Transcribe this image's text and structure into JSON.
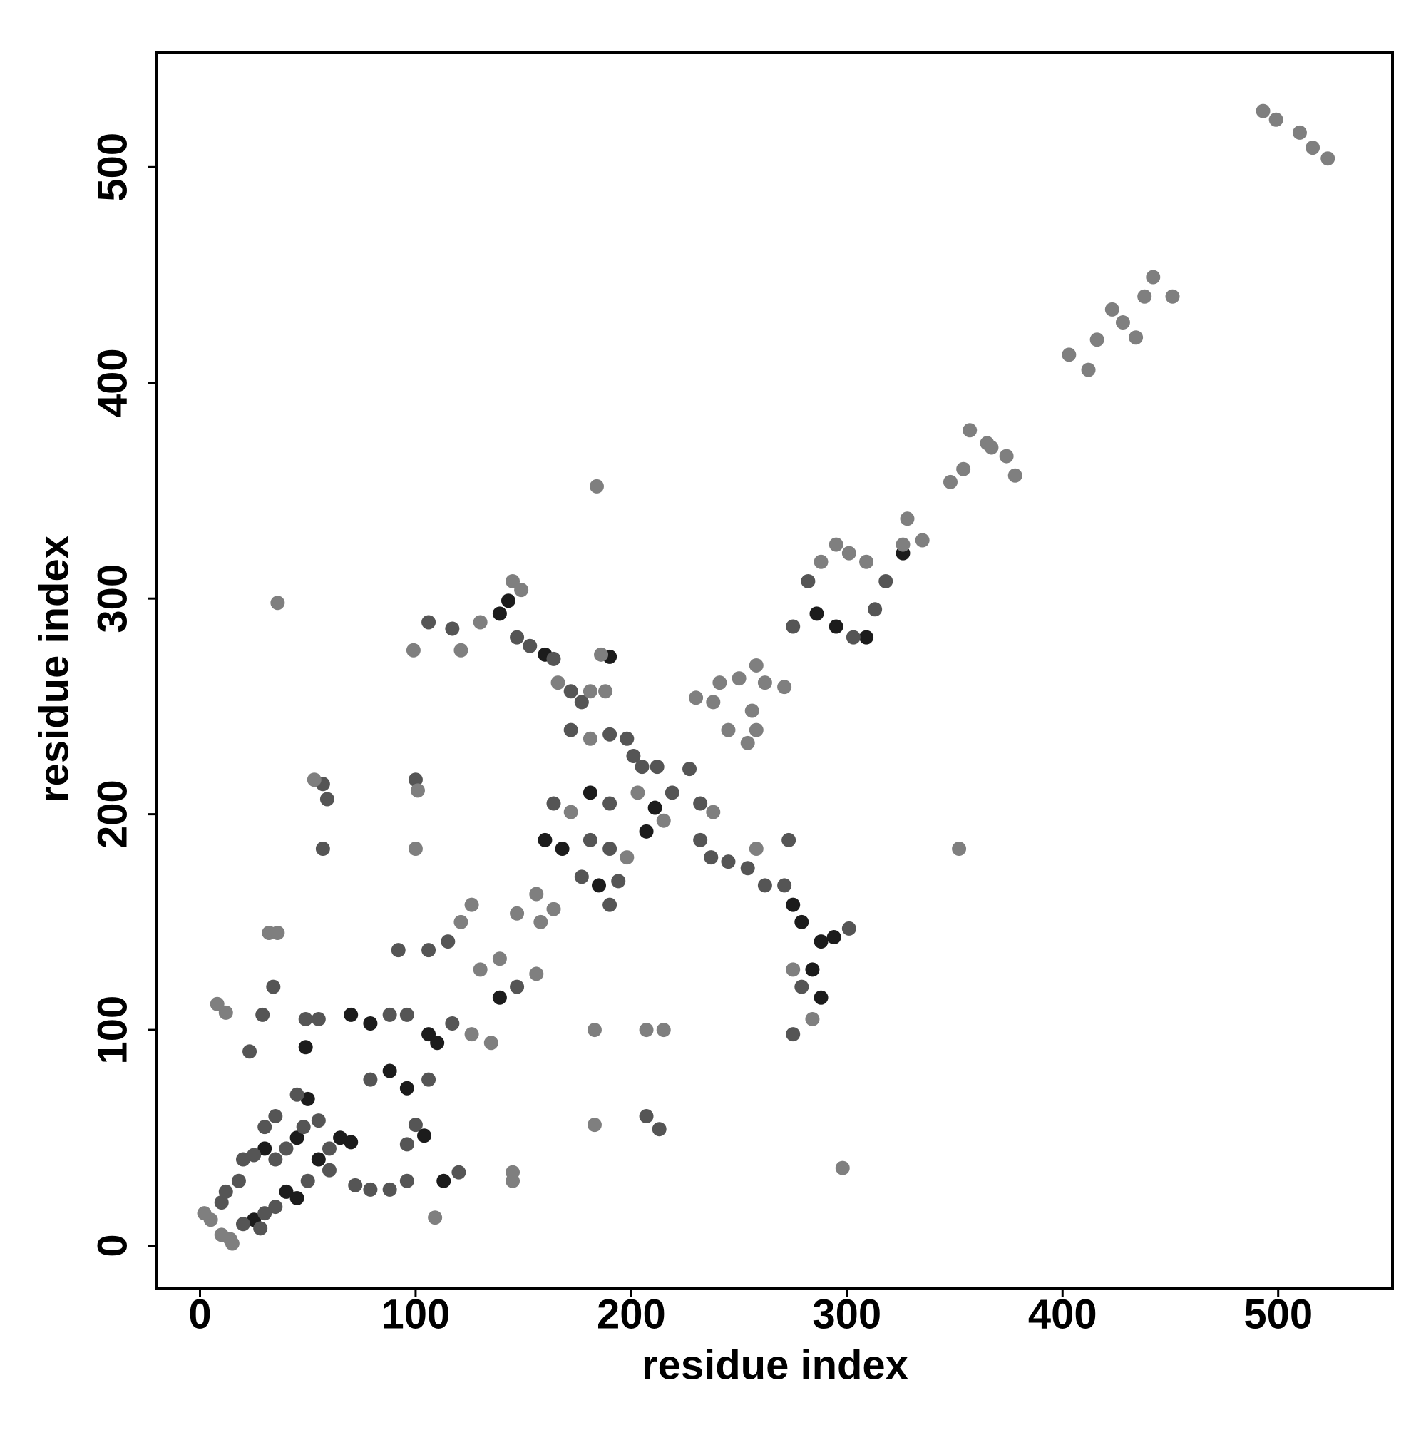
{
  "chart_data": {
    "type": "scatter",
    "x_label": "residue index",
    "y_label": "residue index",
    "xlim": [
      -20,
      553
    ],
    "ylim": [
      -20,
      553
    ],
    "xticks": [
      0,
      100,
      200,
      300,
      400,
      500
    ],
    "yticks": [
      0,
      100,
      200,
      300,
      400,
      500
    ],
    "grid": false,
    "series": [
      {
        "color": "#1c1c1c",
        "x": [
          25,
          30,
          45,
          50,
          55,
          65,
          70,
          40,
          45,
          70,
          79,
          88,
          96,
          106,
          110,
          104,
          113,
          139,
          139,
          143,
          160,
          181,
          211,
          168,
          185,
          160,
          275,
          279,
          288,
          294,
          284,
          288,
          286,
          295,
          309,
          326,
          207,
          190,
          49
        ],
        "y": [
          12,
          45,
          50,
          68,
          40,
          50,
          48,
          25,
          22,
          107,
          103,
          81,
          73,
          98,
          94,
          51,
          30,
          115,
          293,
          299,
          274,
          210,
          203,
          184,
          167,
          188,
          158,
          150,
          141,
          143,
          128,
          115,
          293,
          287,
          282,
          321,
          192,
          273,
          92
        ]
      },
      {
        "color": "#555555",
        "x": [
          10,
          12,
          20,
          28,
          18,
          20,
          25,
          35,
          40,
          48,
          50,
          60,
          60,
          30,
          35,
          30,
          35,
          45,
          55,
          23,
          29,
          34,
          49,
          55,
          57,
          59,
          100,
          106,
          117,
          147,
          153,
          164,
          172,
          177,
          172,
          190,
          198,
          201,
          205,
          212,
          227,
          164,
          190,
          219,
          232,
          181,
          190,
          177,
          194,
          190,
          232,
          237,
          245,
          254,
          262,
          271,
          301,
          279,
          275,
          273,
          88,
          96,
          117,
          79,
          106,
          92,
          106,
          115,
          147,
          96,
          79,
          88,
          72,
          100,
          96,
          120,
          207,
          213,
          275,
          282,
          303,
          313,
          318,
          57
        ],
        "y": [
          20,
          25,
          10,
          8,
          30,
          40,
          42,
          40,
          45,
          55,
          30,
          45,
          35,
          15,
          18,
          55,
          60,
          70,
          58,
          90,
          107,
          120,
          105,
          105,
          214,
          207,
          216,
          289,
          286,
          282,
          278,
          272,
          257,
          252,
          239,
          237,
          235,
          227,
          222,
          222,
          221,
          205,
          205,
          210,
          205,
          188,
          184,
          171,
          169,
          158,
          188,
          180,
          178,
          175,
          167,
          167,
          147,
          120,
          98,
          188,
          107,
          107,
          103,
          77,
          77,
          137,
          137,
          141,
          120,
          30,
          26,
          26,
          28,
          56,
          47,
          34,
          60,
          54,
          287,
          308,
          282,
          295,
          308,
          184
        ]
      },
      {
        "color": "#7f7f7f",
        "x": [
          2,
          5,
          10,
          14,
          15,
          8,
          12,
          32,
          36,
          36,
          53,
          100,
          99,
          101,
          121,
          130,
          145,
          149,
          166,
          181,
          188,
          186,
          181,
          172,
          203,
          238,
          198,
          215,
          126,
          135,
          126,
          156,
          130,
          139,
          147,
          156,
          164,
          158,
          121,
          109,
          145,
          145,
          183,
          183,
          207,
          215,
          298,
          352,
          184,
          230,
          241,
          250,
          258,
          262,
          271,
          256,
          258,
          254,
          245,
          238,
          288,
          295,
          301,
          309,
          326,
          328,
          335,
          348,
          354,
          357,
          365,
          367,
          374,
          378,
          403,
          412,
          416,
          423,
          428,
          434,
          438,
          442,
          451,
          493,
          499,
          510,
          516,
          523,
          258,
          284,
          275
        ],
        "y": [
          15,
          12,
          5,
          3,
          1,
          112,
          108,
          145,
          145,
          298,
          216,
          184,
          276,
          211,
          276,
          289,
          308,
          304,
          261,
          257,
          257,
          274,
          235,
          201,
          210,
          201,
          180,
          197,
          98,
          94,
          158,
          126,
          128,
          133,
          154,
          163,
          156,
          150,
          150,
          13,
          34,
          30,
          56,
          100,
          100,
          100,
          36,
          184,
          352,
          254,
          261,
          263,
          269,
          261,
          259,
          248,
          239,
          233,
          239,
          252,
          317,
          325,
          321,
          317,
          325,
          337,
          327,
          354,
          360,
          378,
          372,
          370,
          366,
          357,
          413,
          406,
          420,
          434,
          428,
          421,
          440,
          449,
          440,
          526,
          522,
          516,
          509,
          504,
          184,
          105,
          128
        ]
      }
    ]
  }
}
